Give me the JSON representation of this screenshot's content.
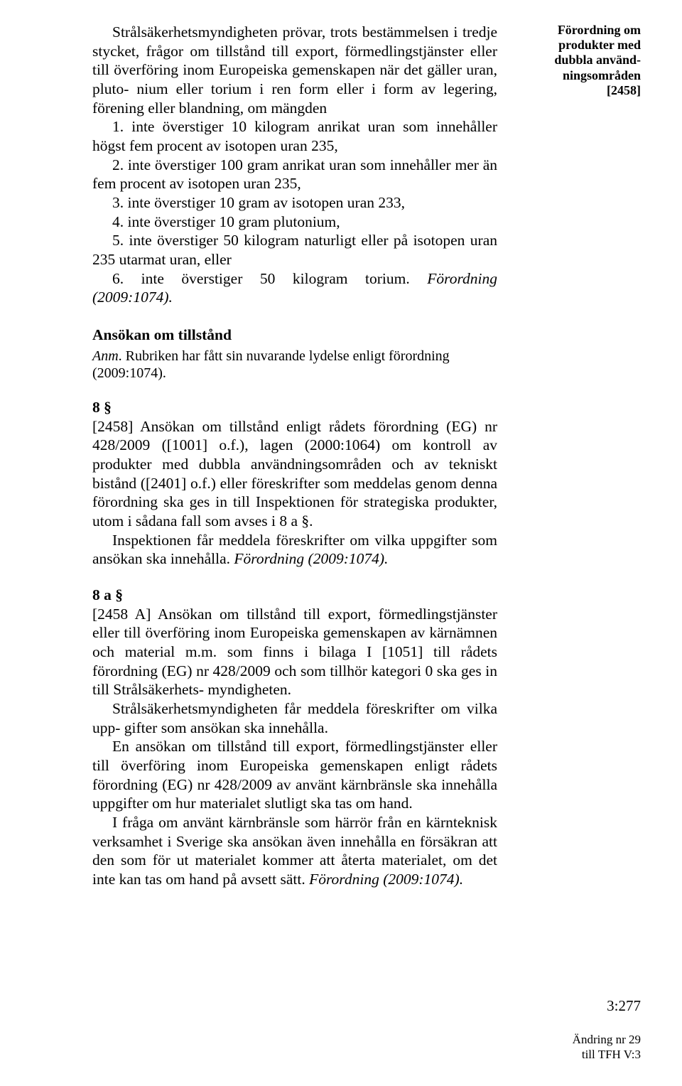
{
  "margin": {
    "line1": "Förordning om",
    "line2": "produkter med",
    "line3": "dubbla använd-",
    "line4": "ningsområden",
    "line5": "[2458]"
  },
  "intro": {
    "p1": "Strålsäkerhetsmyndigheten prövar, trots bestämmelsen i tredje stycket, frågor om tillstånd till export, förmedlingstjänster eller till överföring inom Europeiska gemenskapen när det gäller uran, pluto- nium eller torium i ren form eller i form av legering, förening eller blandning, om mängden",
    "li1": "1. inte överstiger 10 kilogram anrikat uran som innehåller högst fem procent av isotopen uran 235,",
    "li2": "2. inte överstiger 100 gram anrikat uran som innehåller mer än fem procent av isotopen uran 235,",
    "li3": "3. inte överstiger 10 gram av isotopen uran 233,",
    "li4": "4. inte överstiger 10 gram plutonium,",
    "li5": "5. inte överstiger 50 kilogram naturligt eller på isotopen uran 235 utarmat uran, eller",
    "li6_a": "6. inte överstiger 50 kilogram torium. ",
    "li6_b": "Förordning (2009:1074)."
  },
  "ansokan": {
    "heading": "Ansökan om tillstånd",
    "note_a": "Anm",
    "note_b": ". Rubriken har fått sin nuvarande lydelse enligt förordning (2009:1074)."
  },
  "s8": {
    "label": "8 §",
    "p1a": "[2458] Ansökan om tillstånd enligt rådets förordning (EG) nr 428/2009 ([1001] o.f.), lagen (2000:1064) om kontroll av produkter med dubbla användningsområden och av tekniskt bistånd ([2401] o.f.) eller föreskrifter som meddelas genom denna förordning ska ges in till Inspektionen för strategiska produkter, utom i sådana fall som avses i 8 a §.",
    "p2a": "Inspektionen får meddela föreskrifter om vilka uppgifter som ansökan ska innehålla. ",
    "p2b": "Förordning (2009:1074)."
  },
  "s8a": {
    "label": "8 a §",
    "p1": "[2458 A] Ansökan om tillstånd till export, förmedlingstjänster eller till överföring inom Europeiska gemenskapen av kärnämnen och material m.m. som finns i bilaga I [1051] till rådets förordning (EG) nr 428/2009 och som tillhör kategori 0 ska ges in till Strålsäkerhets- myndigheten.",
    "p2": "Strålsäkerhetsmyndigheten får meddela föreskrifter om vilka upp- gifter som ansökan ska innehålla.",
    "p3": "En ansökan om tillstånd till export, förmedlingstjänster eller till överföring inom Europeiska gemenskapen enligt rådets förordning (EG) nr 428/2009 av använt kärnbränsle ska innehålla uppgifter om hur materialet slutligt ska tas om hand.",
    "p4a": "I fråga om använt kärnbränsle som härrör från en kärnteknisk verksamhet i Sverige ska ansökan även innehålla en försäkran att den som för ut materialet kommer att återta materialet, om det inte kan tas om hand på avsett sätt. ",
    "p4b": "Förordning (2009:1074)."
  },
  "pagenum": "3:277",
  "footer": {
    "l1": "Ändring nr 29",
    "l2": "till TFH V:3"
  }
}
